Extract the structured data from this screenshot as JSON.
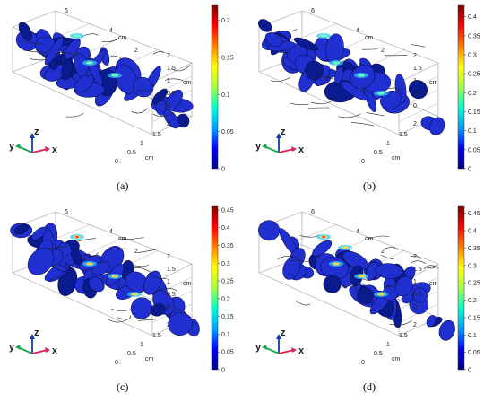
{
  "panels": [
    {
      "id": "a",
      "caption": "(a)",
      "colorbar": {
        "ticks": [
          "0.2",
          "0.15",
          "0.1",
          "0.05",
          "0"
        ],
        "values": [
          0.2,
          0.15,
          0.1,
          0.05,
          0
        ],
        "max": 0.22
      },
      "axes": {
        "top_ticks": [
          "6",
          "4",
          "2"
        ],
        "top_unit": "cm",
        "right_ticks": [
          "2",
          "1.5",
          "1",
          "0.5",
          "0"
        ],
        "right_unit": "cm",
        "bottom_ticks": [
          "0",
          "0.5",
          "1",
          "1.5",
          "2"
        ],
        "bottom_unit": "cm"
      },
      "triad": {
        "z": "z",
        "y": "y",
        "x": "x"
      },
      "hotspot": 0.2
    },
    {
      "id": "b",
      "caption": "(b)",
      "colorbar": {
        "ticks": [
          "0.4",
          "0.35",
          "0.3",
          "0.25",
          "0.2",
          "0.15",
          "0.1",
          "0.05",
          "0"
        ],
        "values": [
          0.4,
          0.35,
          0.3,
          0.25,
          0.2,
          0.15,
          0.1,
          0.05,
          0
        ],
        "max": 0.43
      },
      "axes": {
        "top_ticks": [
          "6",
          "4",
          "2"
        ],
        "top_unit": "cm",
        "right_ticks": [
          "2",
          "1.5",
          "1",
          "0.5",
          "0"
        ],
        "right_unit": "cm",
        "bottom_ticks": [
          "0",
          "0.5",
          "1",
          "1.5",
          "2"
        ],
        "bottom_unit": "cm"
      },
      "triad": {
        "z": "z",
        "y": "y",
        "x": "x"
      },
      "hotspot": 0.5
    },
    {
      "id": "c",
      "caption": "(c)",
      "colorbar": {
        "ticks": [
          "0.45",
          "0.4",
          "0.35",
          "0.3",
          "0.25",
          "0.2",
          "0.15",
          "0.1",
          "0.05",
          "0"
        ],
        "values": [
          0.45,
          0.4,
          0.35,
          0.3,
          0.25,
          0.2,
          0.15,
          0.1,
          0.05,
          0
        ],
        "max": 0.46
      },
      "axes": {
        "top_ticks": [
          "6",
          "4",
          "2"
        ],
        "top_unit": "cm",
        "right_ticks": [
          "2",
          "1.5",
          "1",
          "0.5",
          "0"
        ],
        "right_unit": "cm",
        "bottom_ticks": [
          "0",
          "0.5",
          "1",
          "1.5",
          "2"
        ],
        "bottom_unit": "cm"
      },
      "triad": {
        "z": "z",
        "y": "y",
        "x": "x"
      },
      "hotspot": 0.8
    },
    {
      "id": "d",
      "caption": "(d)",
      "colorbar": {
        "ticks": [
          "0.45",
          "0.4",
          "0.35",
          "0.3",
          "0.25",
          "0.2",
          "0.15",
          "0.1",
          "0.05",
          "0"
        ],
        "values": [
          0.45,
          0.4,
          0.35,
          0.3,
          0.25,
          0.2,
          0.15,
          0.1,
          0.05,
          0
        ],
        "max": 0.47
      },
      "axes": {
        "top_ticks": [
          "6",
          "4",
          "2"
        ],
        "top_unit": "cm",
        "right_ticks": [
          "2",
          "1.5",
          "1",
          "0.5",
          "0"
        ],
        "right_unit": "cm",
        "bottom_ticks": [
          "0",
          "0.5",
          "1",
          "1.5",
          "2"
        ],
        "bottom_unit": "cm"
      },
      "triad": {
        "z": "z",
        "y": "y",
        "x": "x"
      },
      "hotspot": 0.9
    }
  ],
  "colors": {
    "base": "#1f2fd0",
    "deep": "#0a1a8f",
    "triad_z": "#1a3aa8",
    "triad_y": "#1aa84a",
    "triad_x": "#d81e5b",
    "colormap": [
      "#00007f",
      "#0000ff",
      "#00a0ff",
      "#00ffd0",
      "#a0ff40",
      "#ffff00",
      "#ff8000",
      "#ff0000",
      "#7f0000"
    ]
  }
}
